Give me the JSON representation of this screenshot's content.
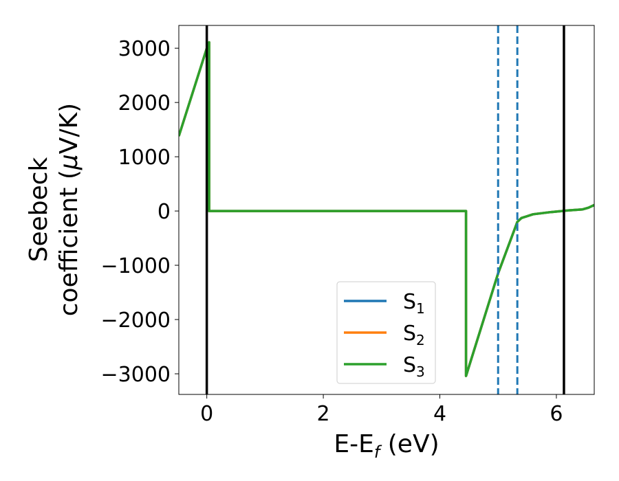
{
  "chart_data": {
    "type": "line",
    "title": "",
    "xlabel_main": "E-E",
    "xlabel_sub": "f",
    "xlabel_rest": " (eV)",
    "ylabel_line1": "Seebeck",
    "ylabel_line2": "coefficient  (",
    "ylabel_mu": "μ",
    "ylabel_unit": "V/K)",
    "xlim": [
      -0.48,
      6.65
    ],
    "ylim": [
      -3380,
      3420
    ],
    "xticks": [
      0,
      2,
      4,
      6
    ],
    "xtick_labels": [
      "0",
      "2",
      "4",
      "6"
    ],
    "yticks": [
      3000,
      2000,
      1000,
      0,
      -1000,
      -2000,
      -3000
    ],
    "ytick_labels": [
      "3000",
      "2000",
      "1000",
      "0",
      "−1000",
      "−2000",
      "−3000"
    ],
    "grid": false,
    "legend_position": "lower-center",
    "series": [
      {
        "name": "S",
        "subscript": "1",
        "color": "#1f77b4",
        "points": [
          [
            -0.48,
            1380
          ],
          [
            0.0,
            3000
          ],
          [
            0.04,
            3110
          ],
          [
            0.04,
            0
          ],
          [
            4.45,
            0
          ],
          [
            4.45,
            -3040
          ],
          [
            5.0,
            -1150
          ],
          [
            5.33,
            -200
          ],
          [
            5.4,
            -130
          ],
          [
            5.6,
            -60
          ],
          [
            5.9,
            -20
          ],
          [
            6.2,
            10
          ],
          [
            6.45,
            30
          ],
          [
            6.55,
            60
          ],
          [
            6.65,
            110
          ]
        ]
      },
      {
        "name": "S",
        "subscript": "2",
        "color": "#ff7f0e",
        "points": [
          [
            -0.48,
            1380
          ],
          [
            0.0,
            3000
          ],
          [
            0.04,
            3110
          ],
          [
            0.04,
            0
          ],
          [
            4.45,
            0
          ],
          [
            4.45,
            -3040
          ],
          [
            5.0,
            -1150
          ],
          [
            5.33,
            -200
          ],
          [
            5.4,
            -130
          ],
          [
            5.6,
            -60
          ],
          [
            5.9,
            -20
          ],
          [
            6.2,
            10
          ],
          [
            6.45,
            30
          ],
          [
            6.55,
            60
          ],
          [
            6.65,
            110
          ]
        ]
      },
      {
        "name": "S",
        "subscript": "3",
        "color": "#2ca02c",
        "points": [
          [
            -0.48,
            1380
          ],
          [
            0.0,
            3000
          ],
          [
            0.04,
            3110
          ],
          [
            0.04,
            0
          ],
          [
            4.45,
            0
          ],
          [
            4.45,
            -3040
          ],
          [
            5.0,
            -1150
          ],
          [
            5.33,
            -200
          ],
          [
            5.4,
            -130
          ],
          [
            5.6,
            -60
          ],
          [
            5.9,
            -20
          ],
          [
            6.2,
            10
          ],
          [
            6.45,
            30
          ],
          [
            6.55,
            60
          ],
          [
            6.65,
            110
          ]
        ]
      }
    ],
    "vlines": [
      {
        "x": 0.0,
        "style": "solid",
        "color": "#000000"
      },
      {
        "x": 6.13,
        "style": "solid",
        "color": "#000000"
      },
      {
        "x": 5.0,
        "style": "dashed",
        "color": "#1f77b4"
      },
      {
        "x": 5.33,
        "style": "dashed",
        "color": "#1f77b4"
      }
    ]
  }
}
